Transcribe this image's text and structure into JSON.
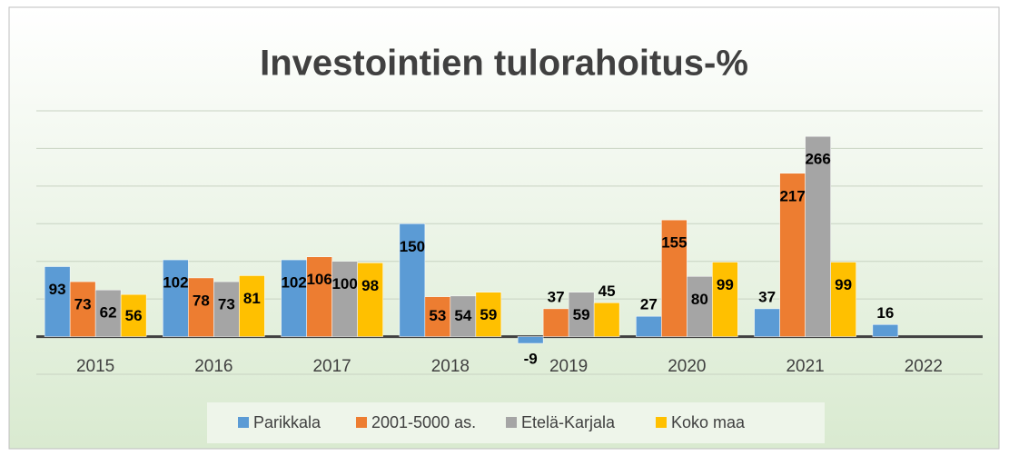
{
  "chart_data": {
    "type": "bar",
    "title": "Investointien tulorahoitus-%",
    "categories": [
      "2015",
      "2016",
      "2017",
      "2018",
      "2019",
      "2020",
      "2021",
      "2022"
    ],
    "series": [
      {
        "name": "Parikkala",
        "color": "#5b9bd5",
        "values": [
          93,
          102,
          102,
          150,
          -9,
          27,
          37,
          16
        ]
      },
      {
        "name": "2001-5000 as.",
        "color": "#ed7d31",
        "values": [
          73,
          78,
          106,
          53,
          37,
          155,
          217,
          null
        ]
      },
      {
        "name": "Etelä-Karjala",
        "color": "#a5a5a5",
        "values": [
          62,
          73,
          100,
          54,
          59,
          80,
          266,
          null
        ]
      },
      {
        "name": "Koko maa",
        "color": "#ffc000",
        "values": [
          56,
          81,
          98,
          59,
          45,
          99,
          99,
          null
        ]
      }
    ],
    "ylim": [
      -50,
      300
    ],
    "yticks": [
      -50,
      0,
      50,
      100,
      150,
      200,
      250,
      300
    ],
    "grid": true,
    "legend": "bottom"
  }
}
